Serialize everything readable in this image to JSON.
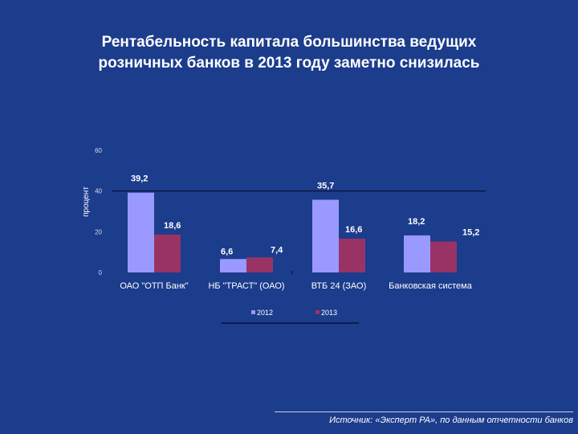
{
  "title_lines": [
    "Рентабельность капитала большинства ведущих",
    "розничных банков в 2013 году заметно снизилась"
  ],
  "source": "Источник: «Эксперт РА», по данным отчетности банков",
  "colors": {
    "background": "#1c3c8c",
    "s2012": "#9999ff",
    "s2013": "#993366"
  },
  "chart_data": {
    "type": "bar",
    "title": "",
    "ylabel": "процент",
    "xlabel": "",
    "ylim": [
      0,
      60
    ],
    "y_ticks": [
      "0",
      "20",
      "40",
      "60"
    ],
    "categories": [
      "ОАО \"ОТП Банк\"",
      "НБ \"ТРАСТ\" (ОАО)",
      "ВТБ 24 (ЗАО)",
      "Банковская система"
    ],
    "series": [
      {
        "name": "2012",
        "values": [
          39.2,
          6.6,
          35.7,
          18.2
        ],
        "labels": [
          "39,2",
          "6,6",
          "35,7",
          "18,2"
        ]
      },
      {
        "name": "2013",
        "values": [
          18.6,
          7.4,
          16.6,
          15.2
        ],
        "labels": [
          "18,6",
          "7,4",
          "16,6",
          "15,2"
        ]
      }
    ],
    "grid": false,
    "legend": "bottom"
  }
}
